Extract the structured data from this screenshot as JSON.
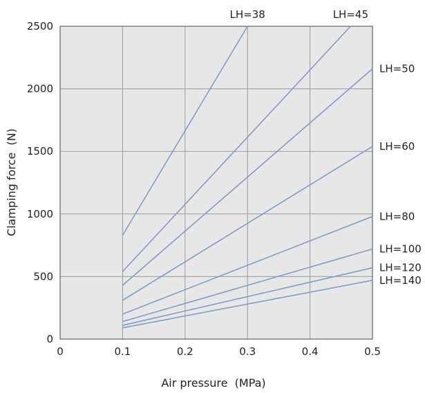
{
  "chart_data": {
    "type": "line",
    "title": "",
    "xlabel": "Air pressure  (MPa)",
    "ylabel": "Clamping force  (N)",
    "xlim": [
      0,
      0.5
    ],
    "ylim": [
      0,
      2500
    ],
    "x_ticks": [
      "0",
      "0.1",
      "0.2",
      "0.3",
      "0.4",
      "0.5"
    ],
    "y_ticks": [
      "0",
      "500",
      "1000",
      "1500",
      "2000",
      "2500"
    ],
    "grid": true,
    "plot_background": "#e7e7e8",
    "grid_color": "#9a9a9a",
    "line_color": "#7f9bc7",
    "series": [
      {
        "name": "LH=38",
        "x": [
          0.1,
          0.3
        ],
        "y": [
          830,
          2500
        ]
      },
      {
        "name": "LH=45",
        "x": [
          0.1,
          0.465
        ],
        "y": [
          540,
          2500
        ]
      },
      {
        "name": "LH=50",
        "x": [
          0.1,
          0.5
        ],
        "y": [
          430,
          2160
        ]
      },
      {
        "name": "LH=60",
        "x": [
          0.1,
          0.5
        ],
        "y": [
          310,
          1540
        ]
      },
      {
        "name": "LH=80",
        "x": [
          0.1,
          0.5
        ],
        "y": [
          200,
          980
        ]
      },
      {
        "name": "LH=100",
        "x": [
          0.1,
          0.5
        ],
        "y": [
          140,
          720
        ]
      },
      {
        "name": "LH=120",
        "x": [
          0.1,
          0.5
        ],
        "y": [
          110,
          570
        ]
      },
      {
        "name": "LH=140",
        "x": [
          0.1,
          0.5
        ],
        "y": [
          90,
          470
        ]
      }
    ]
  }
}
